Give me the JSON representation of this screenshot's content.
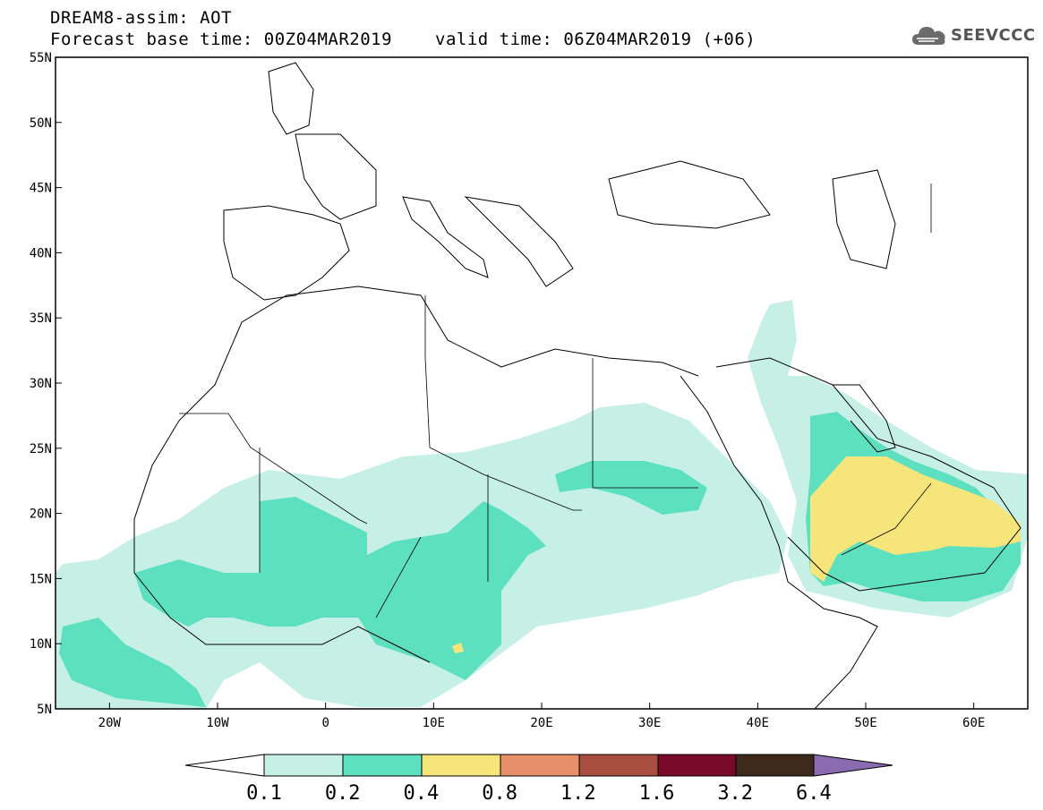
{
  "header": {
    "title": "DREAM8-assim: AOT",
    "base_time": "Forecast base time: 00Z04MAR2019",
    "valid_time": "valid time: 06Z04MAR2019 (+06)"
  },
  "logo": {
    "text": "SEEVCCC",
    "icon": "cloud-icon"
  },
  "map": {
    "lat_ticks": [
      "55N",
      "50N",
      "45N",
      "40N",
      "35N",
      "30N",
      "25N",
      "20N",
      "15N",
      "10N",
      "5N"
    ],
    "lon_ticks": [
      "20W",
      "10W",
      "0",
      "10E",
      "20E",
      "30E",
      "40E",
      "50E",
      "60E"
    ],
    "lon_range": [
      -25,
      65
    ],
    "lat_range": [
      5,
      55
    ]
  },
  "colorbar": {
    "labels": [
      "0.1",
      "0.2",
      "0.4",
      "0.8",
      "1.2",
      "1.6",
      "3.2",
      "6.4"
    ],
    "colors": [
      "#ffffff",
      "#c6f0e6",
      "#5ce0bf",
      "#f5e57a",
      "#e8906a",
      "#a84e40",
      "#7a0a2a",
      "#3d2a1a",
      "#8a6bb0"
    ]
  }
}
